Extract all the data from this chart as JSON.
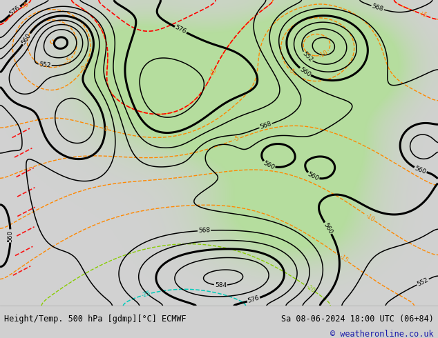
{
  "title_left": "Height/Temp. 500 hPa [gdmp][°C] ECMWF",
  "title_right": "Sa 08-06-2024 18:00 UTC (06+84)",
  "copyright": "© weatheronline.co.uk",
  "bg_color": "#d0d0d0",
  "footer_bg": "#ffffff",
  "title_fontsize": 9,
  "copyright_color": "#1a1aaa",
  "figsize": [
    6.34,
    4.9
  ],
  "dpi": 100,
  "green_color": [
    0.71,
    0.87,
    0.62,
    1.0
  ],
  "land_gray": [
    0.82,
    0.82,
    0.82,
    1.0
  ]
}
